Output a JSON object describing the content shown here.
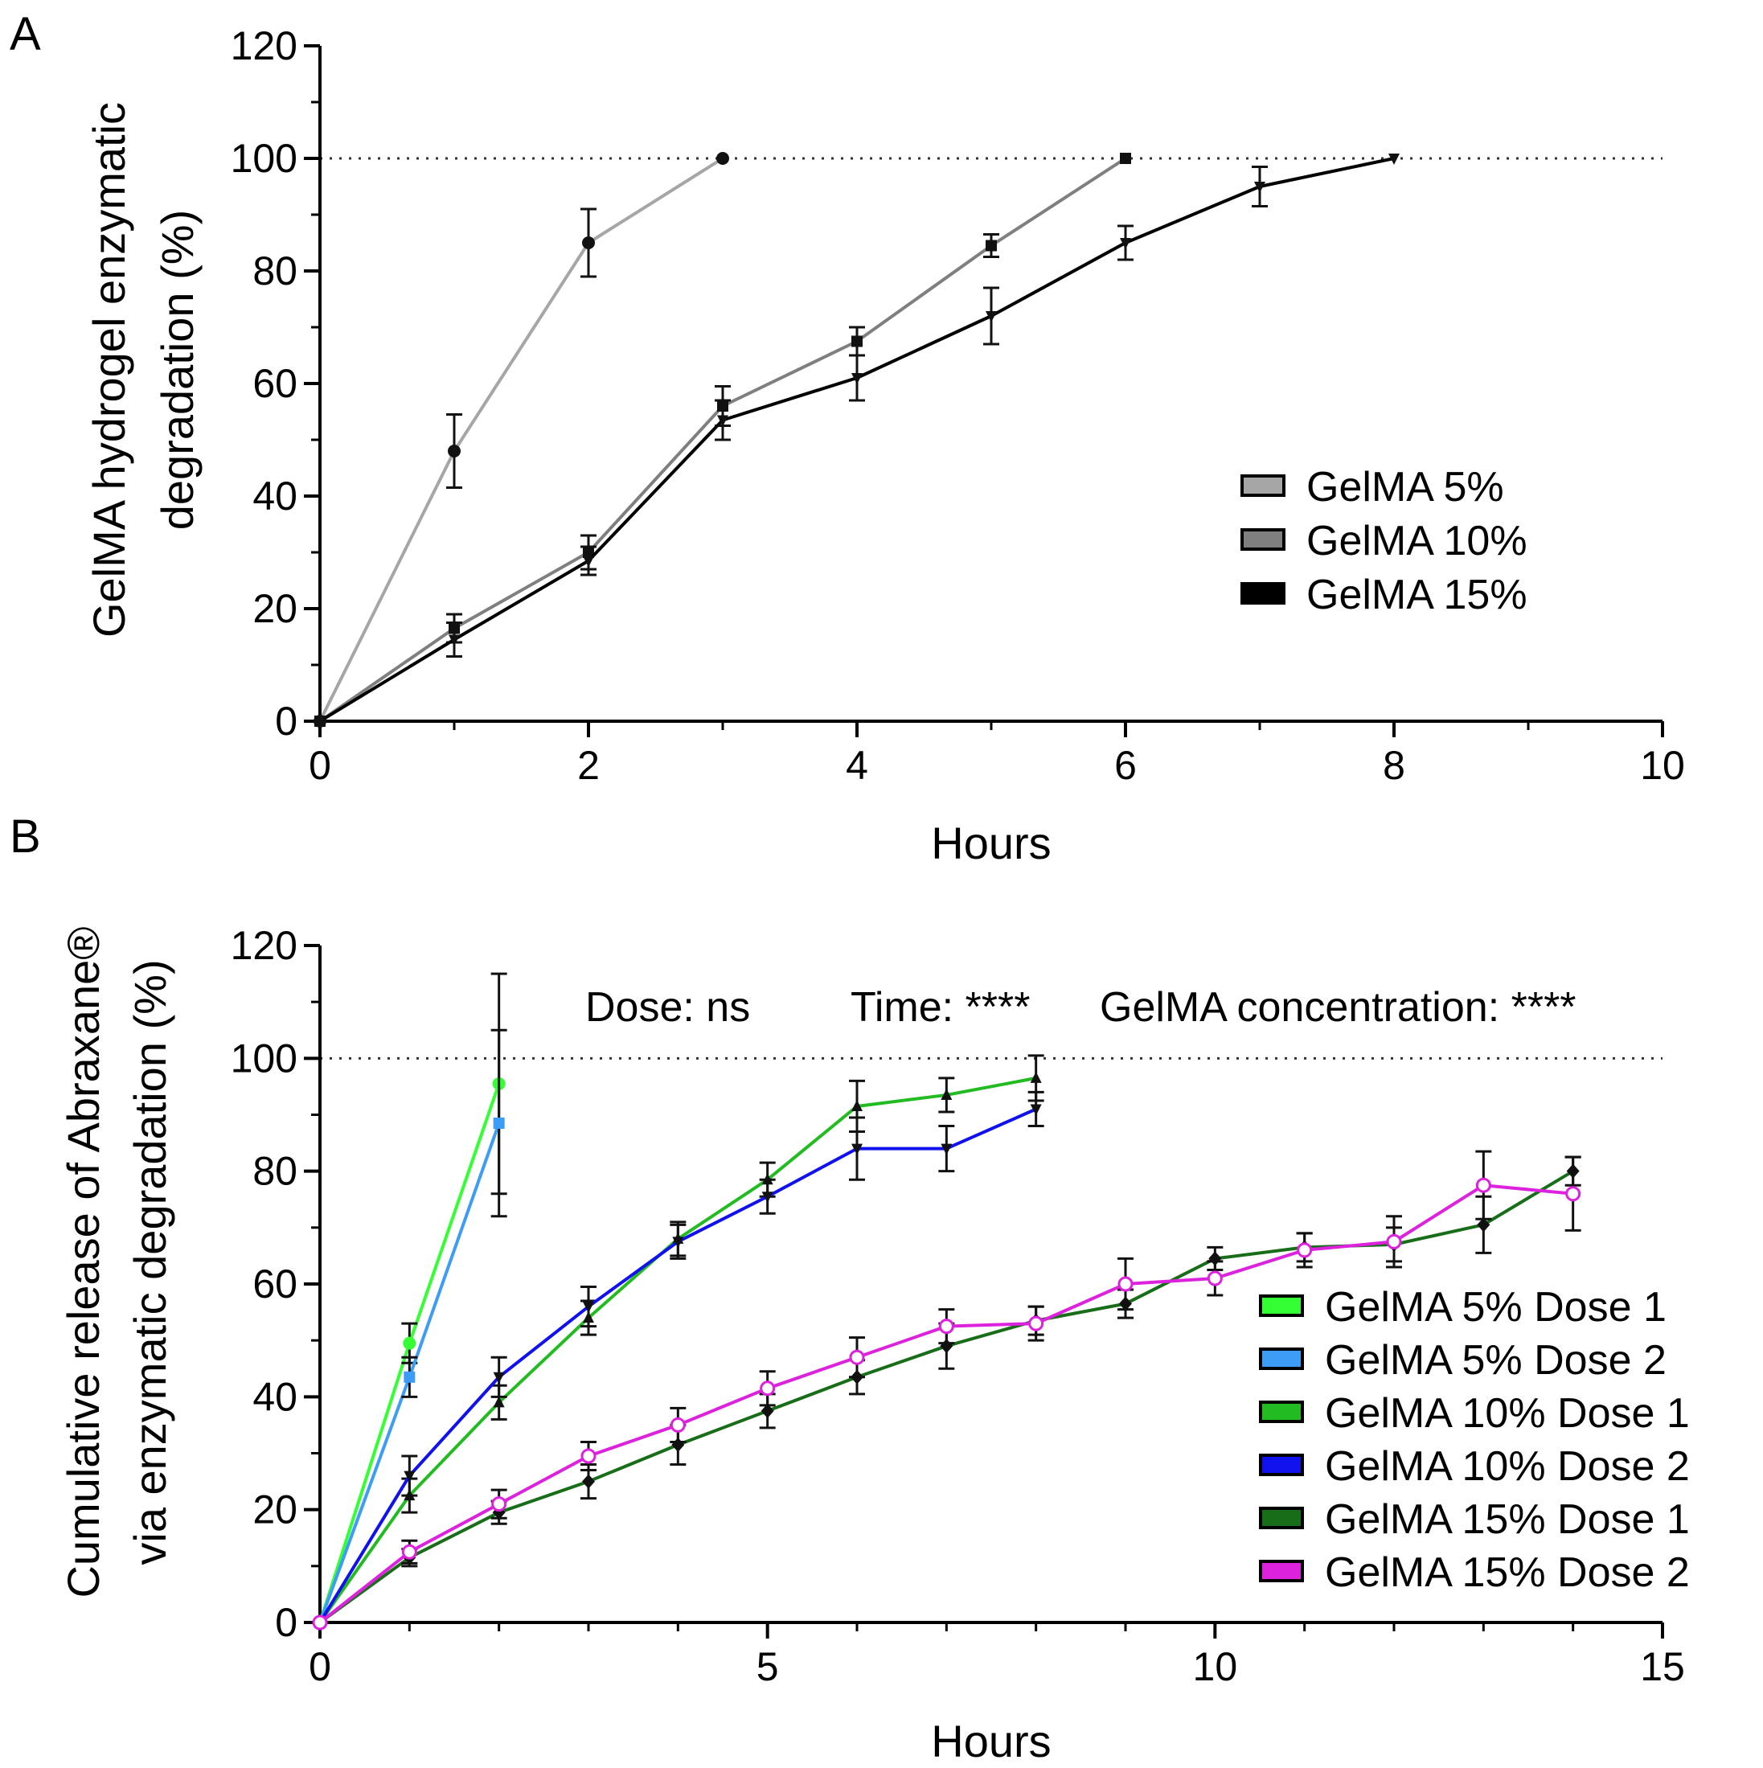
{
  "chart_data": [
    {
      "panel": "A",
      "type": "line",
      "xlabel": "Hours",
      "ylabel": [
        "GelMA hydrogel enzymatic",
        "degradation (%)"
      ],
      "xlim": [
        0,
        10
      ],
      "ylim": [
        0,
        120
      ],
      "xticks": [
        0,
        2,
        4,
        6,
        8,
        10
      ],
      "yticks": [
        0,
        20,
        40,
        60,
        80,
        100,
        120
      ],
      "reference_line": 100,
      "legend_position": "right-center",
      "series": [
        {
          "name": "GelMA 5%",
          "color": "#a6a6a6",
          "marker": "circle",
          "x": [
            0,
            1,
            2,
            3
          ],
          "values": [
            0,
            48,
            85,
            100
          ],
          "errors": [
            0,
            6.5,
            6,
            0
          ]
        },
        {
          "name": "GelMA 10%",
          "color": "#7f7f7f",
          "marker": "square",
          "x": [
            0,
            1,
            2,
            3,
            4,
            5,
            6
          ],
          "values": [
            0,
            16.5,
            30,
            56,
            67.5,
            84.5,
            100
          ],
          "errors": [
            0,
            2.5,
            3,
            3.5,
            2.5,
            2,
            0
          ]
        },
        {
          "name": "GelMA 15%",
          "color": "#000000",
          "marker": "triangle-down",
          "x": [
            0,
            1,
            2,
            3,
            4,
            5,
            6,
            7,
            8
          ],
          "values": [
            0,
            14.5,
            28.5,
            53.5,
            61,
            72,
            85,
            95,
            100
          ],
          "errors": [
            0,
            3,
            2.5,
            3.5,
            4,
            5,
            3,
            3.5,
            0
          ]
        }
      ]
    },
    {
      "panel": "B",
      "type": "line",
      "xlabel": "Hours",
      "ylabel": [
        "Cumulative release of Abraxane®",
        "via enzymatic degradation (%)"
      ],
      "xlim": [
        0,
        15
      ],
      "ylim": [
        0,
        120
      ],
      "xticks": [
        0,
        5,
        10,
        15
      ],
      "yticks": [
        0,
        20,
        40,
        60,
        80,
        100,
        120
      ],
      "reference_line": 100,
      "legend_position": "bottom-right",
      "stats": {
        "dose": "Dose: ns",
        "time": "Time: ****",
        "concentration": "GelMA concentration: ****"
      },
      "series": [
        {
          "name": "GelMA 5% Dose 1",
          "color": "#33ff33",
          "marker": "circle",
          "x": [
            0,
            1,
            2
          ],
          "values": [
            0,
            49.5,
            95.5
          ],
          "errors": [
            0,
            3.5,
            19.5
          ]
        },
        {
          "name": "GelMA 5% Dose 2",
          "color": "#3d9cf5",
          "marker": "square",
          "x": [
            0,
            1,
            2
          ],
          "values": [
            0,
            43.5,
            88.5
          ],
          "errors": [
            0,
            3.5,
            16.5
          ]
        },
        {
          "name": "GelMA 10% Dose 1",
          "color": "#22bb22",
          "marker": "triangle-up",
          "x": [
            0,
            1,
            2,
            3,
            4,
            5,
            6,
            7,
            8
          ],
          "values": [
            0,
            22.5,
            39,
            54,
            68,
            78.5,
            91.5,
            93.5,
            96.5
          ],
          "errors": [
            0,
            3,
            3,
            3,
            3,
            3,
            4.5,
            3,
            4
          ]
        },
        {
          "name": "GelMA 10% Dose 2",
          "color": "#1111ee",
          "marker": "triangle-down",
          "x": [
            0,
            1,
            2,
            3,
            4,
            5,
            6,
            7,
            8
          ],
          "values": [
            0,
            26,
            43.5,
            56,
            67.5,
            75.5,
            84,
            84,
            91
          ],
          "errors": [
            0,
            3.5,
            3.5,
            3.5,
            3,
            3,
            5.5,
            4,
            3
          ]
        },
        {
          "name": "GelMA 15% Dose 1",
          "color": "#186e18",
          "marker": "diamond",
          "x": [
            0,
            1,
            2,
            3,
            4,
            5,
            6,
            7,
            8,
            9,
            10,
            11,
            12,
            13,
            14
          ],
          "values": [
            0,
            11.5,
            19.5,
            25,
            31.5,
            37.5,
            43.5,
            49,
            53.5,
            56.5,
            64.5,
            66.5,
            67,
            70.5,
            80
          ],
          "errors": [
            0,
            1.5,
            2,
            3,
            3.5,
            3,
            3,
            4,
            2.5,
            2.5,
            2,
            2.5,
            3,
            5,
            2.5
          ]
        },
        {
          "name": "GelMA 15% Dose 2",
          "color": "#dd22dd",
          "marker": "open-circle",
          "x": [
            0,
            1,
            2,
            3,
            4,
            5,
            6,
            7,
            8,
            9,
            10,
            11,
            12,
            13,
            14
          ],
          "values": [
            0,
            12.5,
            21,
            29.5,
            35,
            41.5,
            47,
            52.5,
            53,
            60,
            61,
            66,
            67.5,
            77.5,
            76
          ],
          "errors": [
            0,
            2,
            2.5,
            2.5,
            3,
            3,
            3.5,
            3,
            3,
            4.5,
            3,
            3,
            4.5,
            6,
            6.5
          ]
        }
      ]
    }
  ],
  "panel_labels": {
    "a": "A",
    "b": "B"
  }
}
